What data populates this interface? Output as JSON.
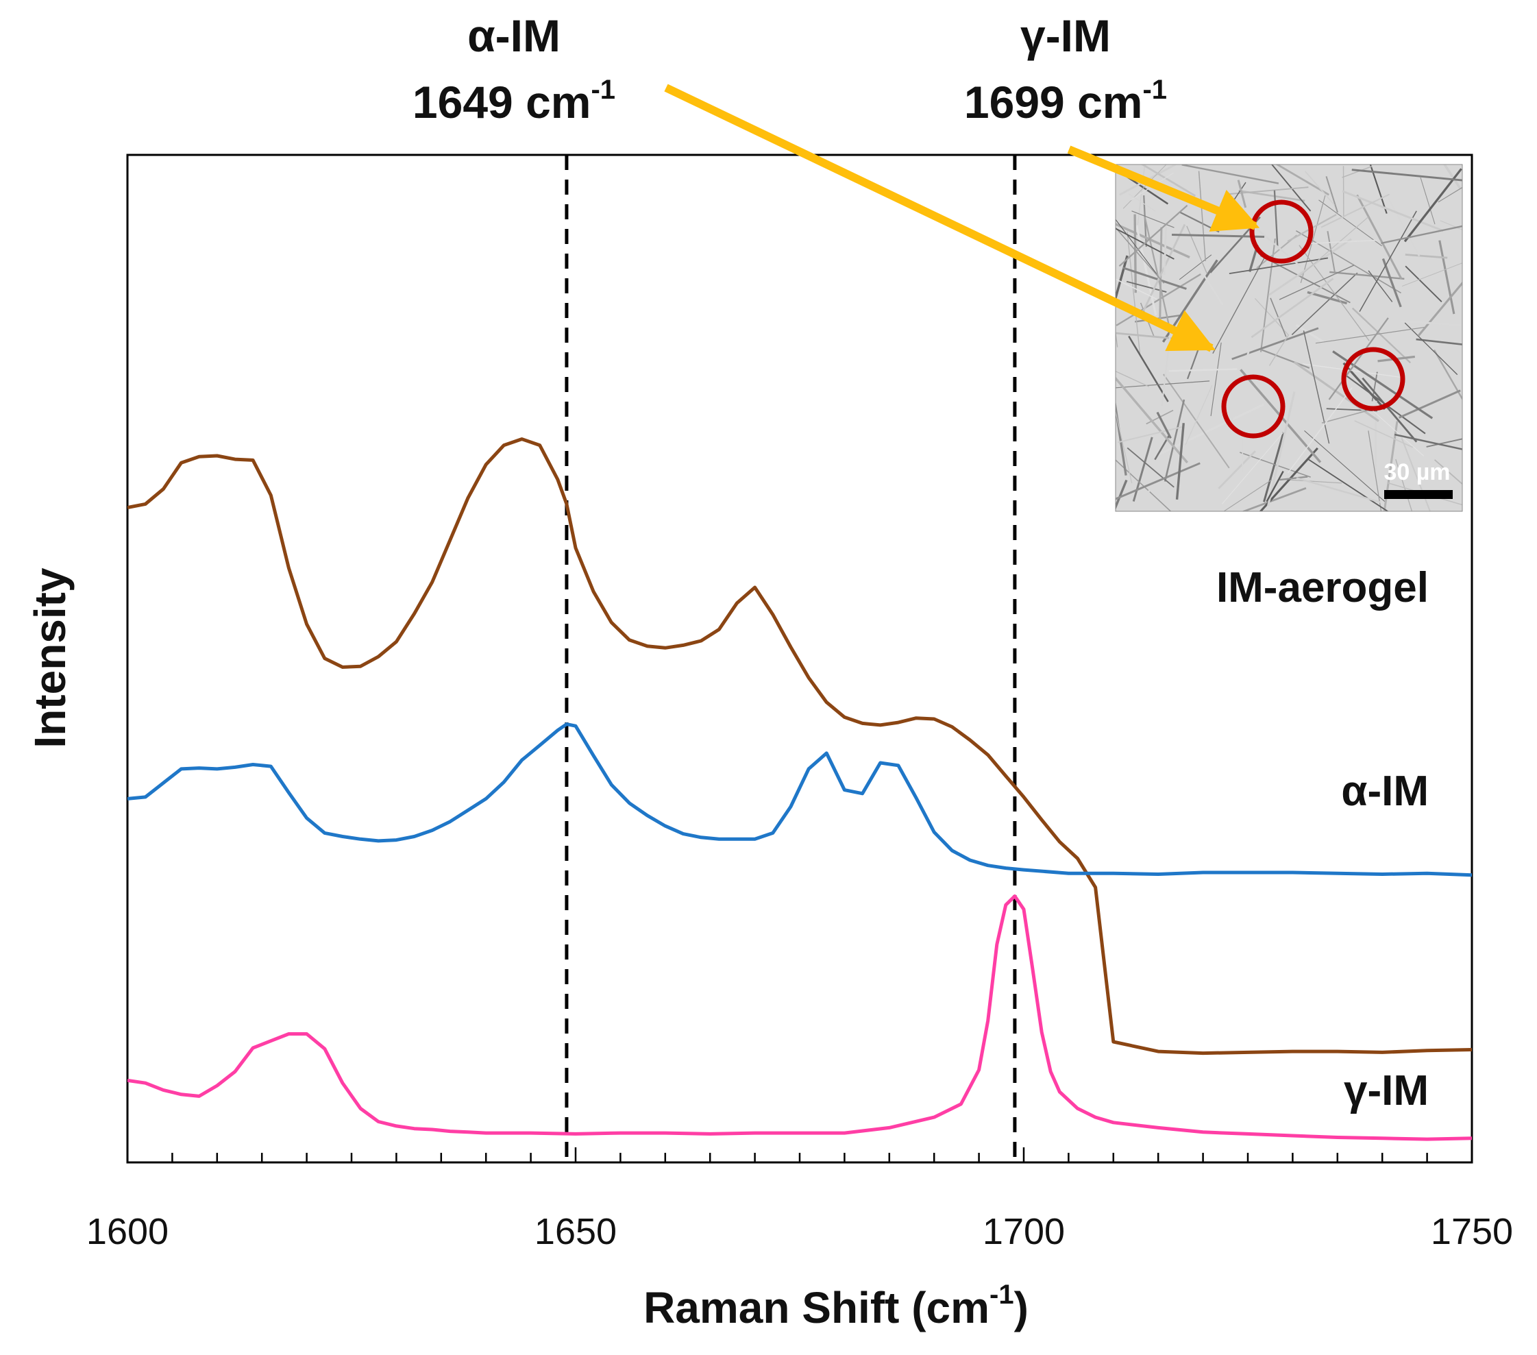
{
  "chart_data": {
    "type": "line",
    "xlabel": "Raman Shift (cm",
    "xlabel_superscript": "-1",
    "xlabel_suffix": ")",
    "ylabel": "Intensity",
    "xlim": [
      1600,
      1750
    ],
    "ylim": [
      0,
      100
    ],
    "x_ticks": [
      1600,
      1650,
      1700,
      1750
    ],
    "x_tick_labels": [
      "1600",
      "1650",
      "1700",
      "1750"
    ],
    "x_minor_step": 5,
    "grid": false,
    "legend_placement": "labels at right of each trace",
    "reference_lines": [
      {
        "x": 1649,
        "name": "α-IM",
        "label": "1649 cm",
        "superscript": "-1"
      },
      {
        "x": 1699,
        "name": "γ-IM",
        "label": "1699 cm",
        "superscript": "-1"
      }
    ],
    "series": [
      {
        "name": "IM-aerogel",
        "color": "#8B4513",
        "x": [
          1600,
          1602,
          1604,
          1606,
          1608,
          1610,
          1612,
          1614,
          1616,
          1618,
          1620,
          1622,
          1624,
          1626,
          1628,
          1630,
          1632,
          1634,
          1636,
          1638,
          1640,
          1642,
          1644,
          1646,
          1648,
          1649,
          1650,
          1652,
          1654,
          1656,
          1658,
          1660,
          1662,
          1664,
          1666,
          1668,
          1670,
          1672,
          1674,
          1676,
          1678,
          1680,
          1682,
          1684,
          1686,
          1688,
          1690,
          1692,
          1694,
          1696,
          1698,
          1700,
          1702,
          1704,
          1706,
          1708,
          1710,
          1715,
          1720,
          1725,
          1730,
          1735,
          1740,
          1745,
          1750
        ],
        "y": [
          73.4,
          73.8,
          75.5,
          78.5,
          79.2,
          79.3,
          78.9,
          78.8,
          74.8,
          66.5,
          60.1,
          56.2,
          55.2,
          55.3,
          56.4,
          58.1,
          61.3,
          64.9,
          69.7,
          74.5,
          78.3,
          80.5,
          81.2,
          80.5,
          76.6,
          73.8,
          68.8,
          63.8,
          60.3,
          58.3,
          57.6,
          57.4,
          57.7,
          58.2,
          59.5,
          62.5,
          64.3,
          61.2,
          57.5,
          54.0,
          51.2,
          49.5,
          48.8,
          48.6,
          48.9,
          49.4,
          49.3,
          48.4,
          46.9,
          45.2,
          42.8,
          40.4,
          37.8,
          35.3,
          33.4,
          30.1,
          12.5,
          11.4,
          11.2,
          11.3,
          11.4,
          11.4,
          11.3,
          11.5,
          11.6
        ],
        "label_value_hint": "offset trace"
      },
      {
        "name": "α-IM",
        "color": "#1F77C8",
        "x": [
          1600,
          1602,
          1604,
          1606,
          1608,
          1610,
          1612,
          1614,
          1616,
          1618,
          1620,
          1622,
          1624,
          1626,
          1628,
          1630,
          1632,
          1634,
          1636,
          1638,
          1640,
          1642,
          1644,
          1646,
          1648,
          1649,
          1650,
          1652,
          1654,
          1656,
          1658,
          1660,
          1662,
          1664,
          1666,
          1668,
          1670,
          1672,
          1674,
          1676,
          1678,
          1680,
          1682,
          1684,
          1686,
          1688,
          1690,
          1692,
          1694,
          1696,
          1698,
          1700,
          1705,
          1710,
          1715,
          1720,
          1725,
          1730,
          1735,
          1740,
          1745,
          1750
        ],
        "y": [
          40.2,
          40.4,
          42.0,
          43.6,
          43.7,
          43.6,
          43.8,
          44.1,
          43.9,
          40.9,
          38.0,
          36.3,
          35.9,
          35.6,
          35.4,
          35.5,
          35.9,
          36.6,
          37.6,
          38.9,
          40.2,
          42.1,
          44.6,
          46.3,
          48.0,
          48.7,
          48.5,
          45.1,
          41.8,
          39.7,
          38.3,
          37.1,
          36.2,
          35.8,
          35.6,
          35.6,
          35.6,
          36.3,
          39.3,
          43.6,
          45.4,
          41.2,
          40.8,
          44.3,
          44.0,
          40.3,
          36.4,
          34.3,
          33.2,
          32.6,
          32.3,
          32.1,
          31.7,
          31.7,
          31.6,
          31.8,
          31.8,
          31.8,
          31.7,
          31.6,
          31.7,
          31.5
        ],
        "label_value_hint": "offset trace"
      },
      {
        "name": "γ-IM",
        "color": "#FF3EA5",
        "x": [
          1600,
          1602,
          1604,
          1606,
          1608,
          1610,
          1612,
          1614,
          1616,
          1618,
          1620,
          1622,
          1624,
          1626,
          1628,
          1630,
          1632,
          1634,
          1636,
          1638,
          1640,
          1645,
          1650,
          1655,
          1660,
          1665,
          1670,
          1675,
          1680,
          1685,
          1690,
          1693,
          1695,
          1696,
          1697,
          1698,
          1699,
          1700,
          1701,
          1702,
          1703,
          1704,
          1706,
          1708,
          1710,
          1715,
          1720,
          1725,
          1730,
          1735,
          1740,
          1745,
          1750
        ],
        "y": [
          8.1,
          7.8,
          7.0,
          6.5,
          6.3,
          7.5,
          9.1,
          11.8,
          12.6,
          13.4,
          13.4,
          11.7,
          7.8,
          4.9,
          3.4,
          2.9,
          2.6,
          2.5,
          2.3,
          2.2,
          2.1,
          2.1,
          2.0,
          2.1,
          2.1,
          2.0,
          2.1,
          2.1,
          2.1,
          2.7,
          3.9,
          5.4,
          9.3,
          14.9,
          23.6,
          28.1,
          29.1,
          27.6,
          20.7,
          13.6,
          9.1,
          6.8,
          4.9,
          3.9,
          3.3,
          2.7,
          2.2,
          2.0,
          1.8,
          1.6,
          1.5,
          1.4,
          1.5
        ],
        "label_value_hint": "offset trace"
      }
    ],
    "series_labels": [
      "IM-aerogel",
      "α-IM",
      "γ-IM"
    ],
    "inset": {
      "kind": "SEM micrograph",
      "scale_bar_label": "30 µm",
      "arrow_color": "#FFBE0B",
      "circle_color": "#C00000"
    }
  }
}
